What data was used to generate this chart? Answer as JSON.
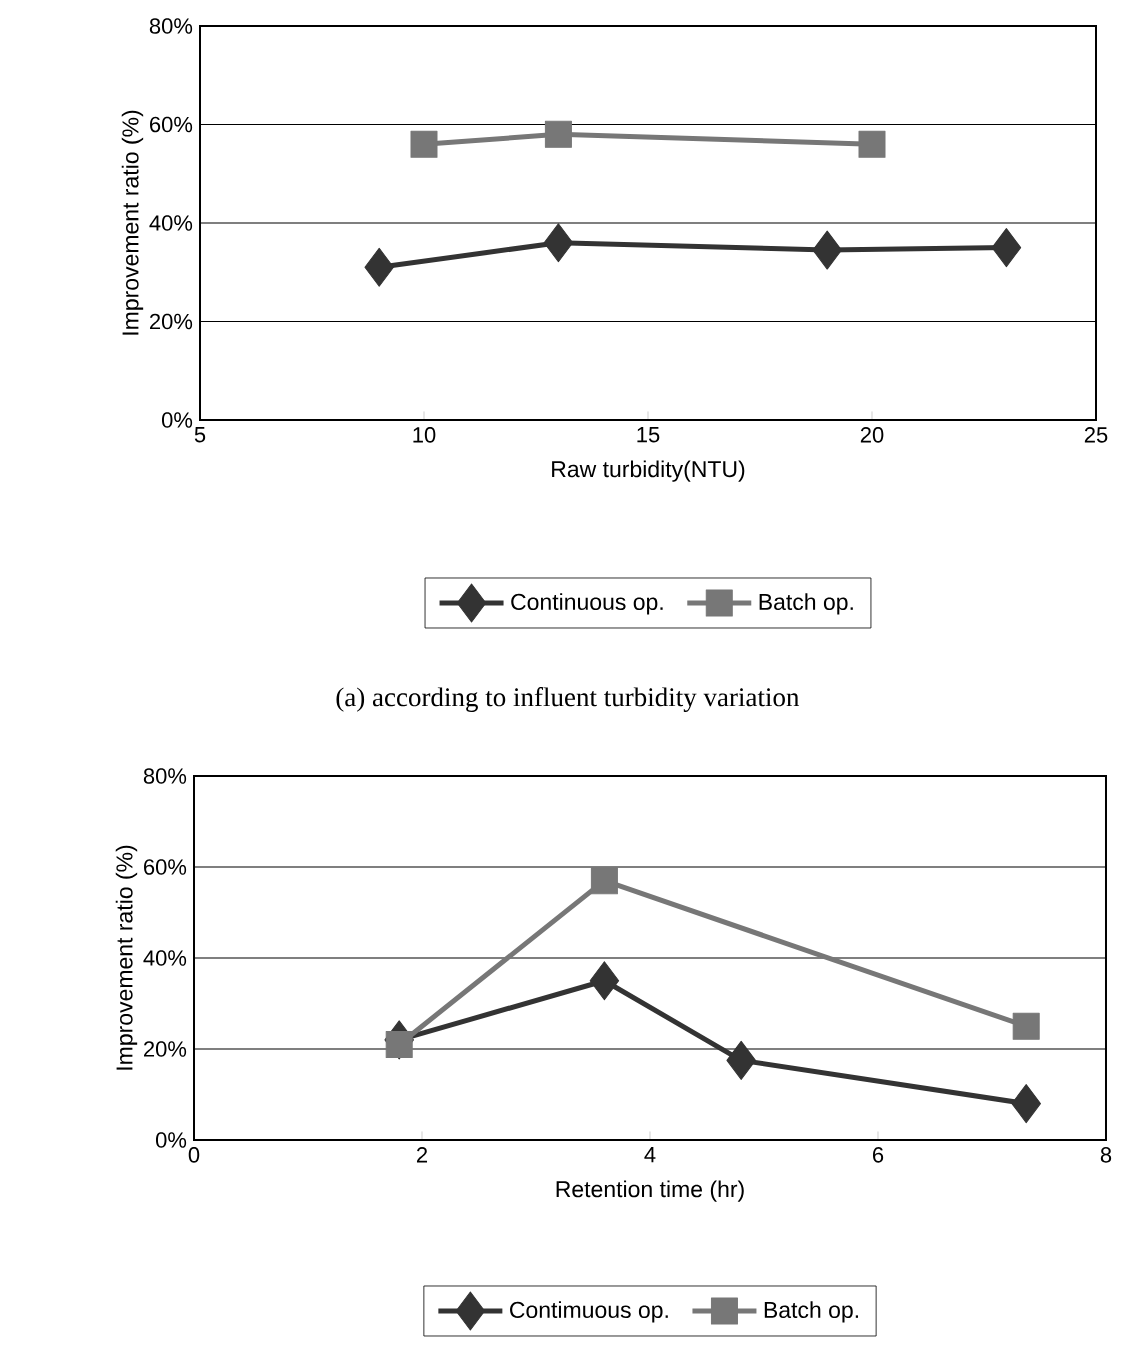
{
  "chart_data": [
    {
      "type": "line",
      "xlabel": "Raw turbidity(NTU)",
      "ylabel": "Improvement ratio (%)",
      "annotations": [
        "(a) according to influent turbidity variation"
      ],
      "xlim": [
        5,
        25
      ],
      "xticks": [
        5,
        10,
        15,
        20,
        25
      ],
      "ylim": [
        0,
        80
      ],
      "yticks": [
        {
          "value": 0,
          "label": "0%"
        },
        {
          "value": 20,
          "label": "20%"
        },
        {
          "value": 40,
          "label": "40%"
        },
        {
          "value": 60,
          "label": "60%"
        },
        {
          "value": 80,
          "label": "80%"
        }
      ],
      "grid": "y",
      "legend": "bottom",
      "series": [
        {
          "name": "Continuous op.",
          "color": "#333333",
          "marker": "diamond",
          "x": [
            9,
            13,
            19,
            23
          ],
          "values": [
            31,
            36,
            34.5,
            35
          ]
        },
        {
          "name": "Batch op.",
          "color": "#777777",
          "marker": "square",
          "x": [
            10,
            13,
            20
          ],
          "values": [
            56,
            58,
            56
          ]
        }
      ]
    },
    {
      "type": "line",
      "xlabel": "Retention time (hr)",
      "ylabel": "Improvement ratio (%)",
      "xlim": [
        0,
        8
      ],
      "xticks": [
        0,
        2,
        4,
        6,
        8
      ],
      "ylim": [
        0,
        80
      ],
      "yticks": [
        {
          "value": 0,
          "label": "0%"
        },
        {
          "value": 20,
          "label": "20%"
        },
        {
          "value": 40,
          "label": "40%"
        },
        {
          "value": 60,
          "label": "60%"
        },
        {
          "value": 80,
          "label": "80%"
        }
      ],
      "grid": "y",
      "legend": "bottom",
      "series": [
        {
          "name": "Contimuous op.",
          "color": "#333333",
          "marker": "diamond",
          "x": [
            1.8,
            3.6,
            4.8,
            7.3
          ],
          "values": [
            22,
            35,
            17.5,
            8
          ]
        },
        {
          "name": "Batch op.",
          "color": "#777777",
          "marker": "square",
          "x": [
            1.8,
            3.6,
            7.3
          ],
          "values": [
            21,
            57,
            25
          ]
        }
      ]
    }
  ]
}
